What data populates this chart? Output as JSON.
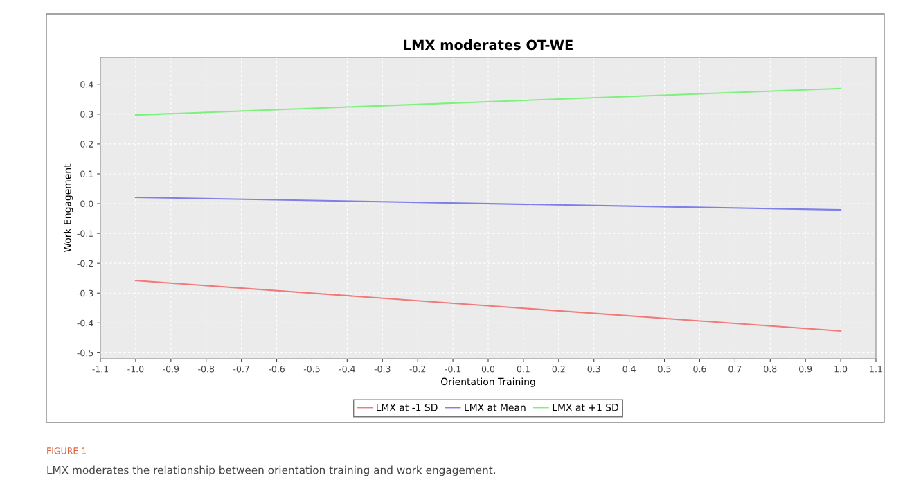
{
  "chart_data": {
    "type": "line",
    "title": "LMX moderates OT-WE",
    "xlabel": "Orientation Training",
    "ylabel": "Work Engagement",
    "x": [
      -1.0,
      1.0
    ],
    "series": [
      {
        "name": "LMX at -1 SD",
        "color": "#f07a7a",
        "values": [
          -0.258,
          -0.427
        ]
      },
      {
        "name": "LMX at Mean",
        "color": "#7f7fe8",
        "values": [
          0.021,
          -0.021
        ]
      },
      {
        "name": "LMX at +1 SD",
        "color": "#7ef07e",
        "values": [
          0.297,
          0.386
        ]
      }
    ],
    "xlim": [
      -1.1,
      1.1
    ],
    "xticks": [
      {
        "value": -1.1,
        "label": "-1.1"
      },
      {
        "value": -1.0,
        "label": "-1.0"
      },
      {
        "value": -0.9,
        "label": "-0.9"
      },
      {
        "value": -0.8,
        "label": "-0.8"
      },
      {
        "value": -0.7,
        "label": "-0.7"
      },
      {
        "value": -0.6,
        "label": "-0.6"
      },
      {
        "value": -0.5,
        "label": "-0.5"
      },
      {
        "value": -0.4,
        "label": "-0.4"
      },
      {
        "value": -0.3,
        "label": "-0.3"
      },
      {
        "value": -0.2,
        "label": "-0.2"
      },
      {
        "value": -0.1,
        "label": "-0.1"
      },
      {
        "value": 0.0,
        "label": "0.0"
      },
      {
        "value": 0.1,
        "label": "0.1"
      },
      {
        "value": 0.2,
        "label": "0.2"
      },
      {
        "value": 0.3,
        "label": "0.3"
      },
      {
        "value": 0.4,
        "label": "0.4"
      },
      {
        "value": 0.5,
        "label": "0.5"
      },
      {
        "value": 0.6,
        "label": "0.6"
      },
      {
        "value": 0.7,
        "label": "0.7"
      },
      {
        "value": 0.8,
        "label": "0.8"
      },
      {
        "value": 0.9,
        "label": "0.9"
      },
      {
        "value": 1.0,
        "label": "1.0"
      },
      {
        "value": 1.1,
        "label": "1.1"
      }
    ],
    "ylim": [
      -0.52,
      0.49
    ],
    "yticks": [
      {
        "value": -0.5,
        "label": "-0.5"
      },
      {
        "value": -0.4,
        "label": "-0.4"
      },
      {
        "value": -0.3,
        "label": "-0.3"
      },
      {
        "value": -0.2,
        "label": "-0.2"
      },
      {
        "value": -0.1,
        "label": "-0.1"
      },
      {
        "value": 0.0,
        "label": "0.0"
      },
      {
        "value": 0.1,
        "label": "0.1"
      },
      {
        "value": 0.2,
        "label": "0.2"
      },
      {
        "value": 0.3,
        "label": "0.3"
      },
      {
        "value": 0.4,
        "label": "0.4"
      }
    ],
    "grid": true,
    "legend": "bottom",
    "marker": "none",
    "line_style": "solid",
    "annotations": [
      "FIGURE 1",
      "LMX moderates the relationship between orientation training and work engagement."
    ]
  }
}
